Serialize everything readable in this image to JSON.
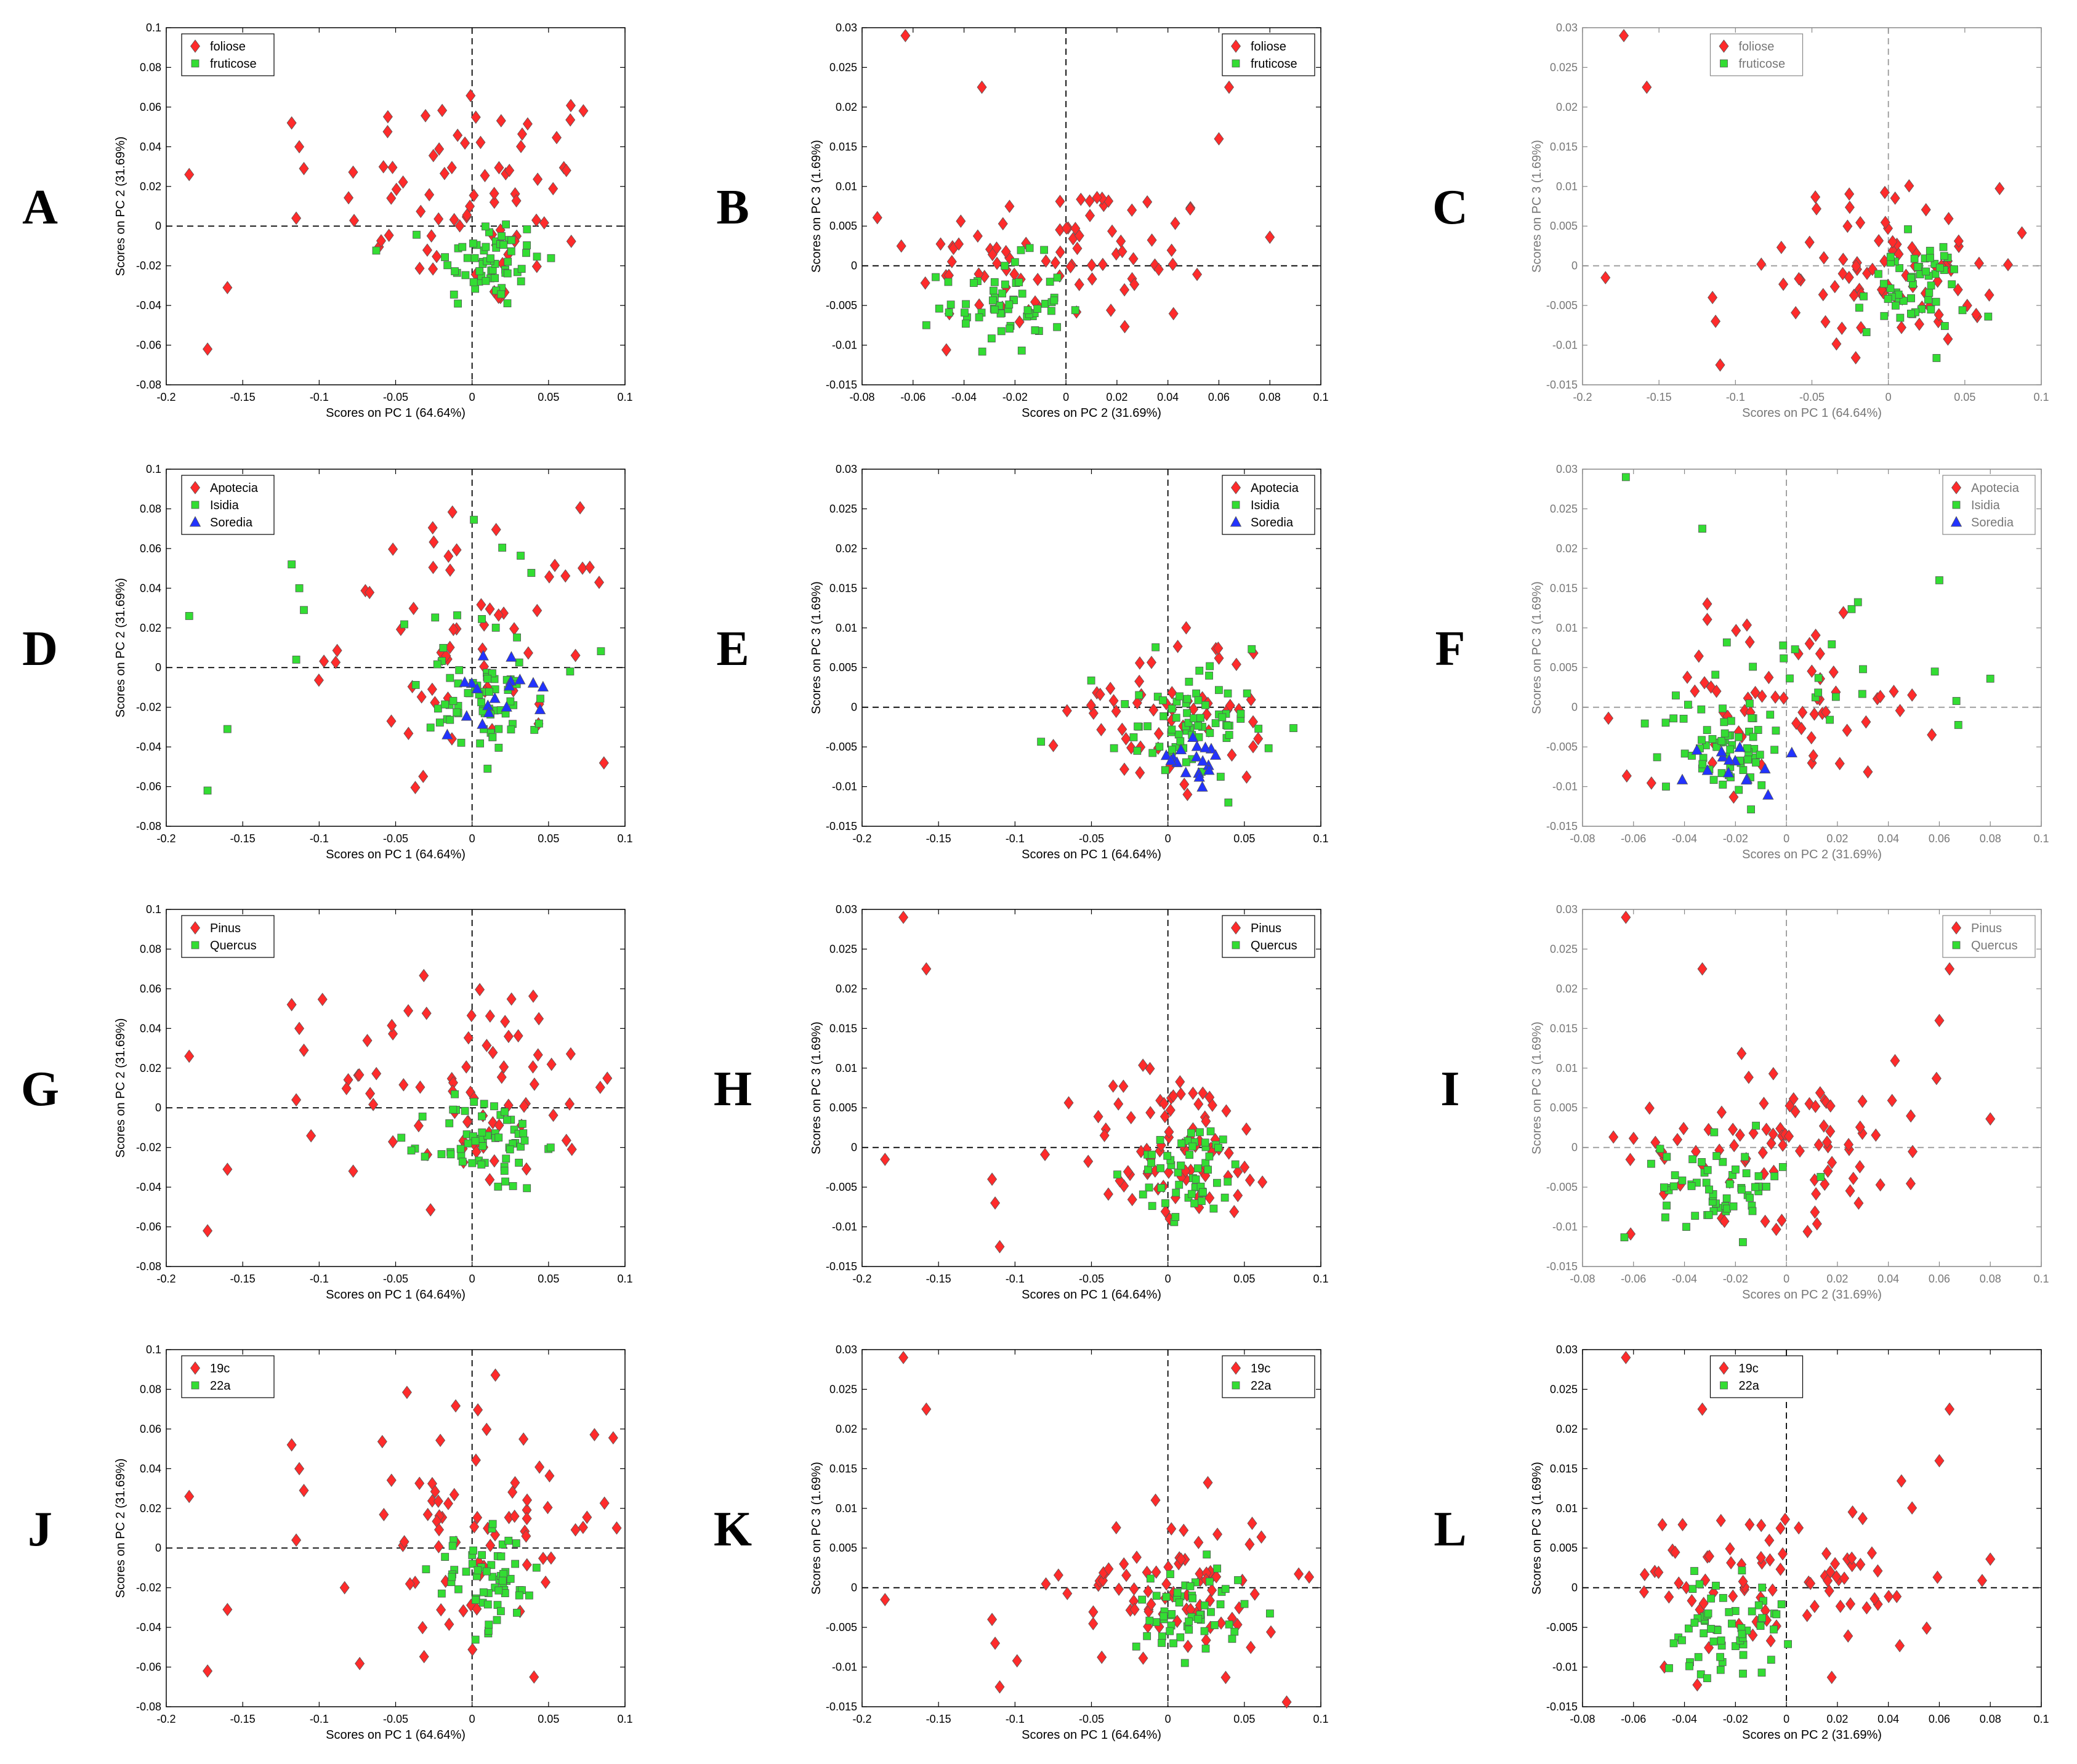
{
  "figure": {
    "colors": {
      "red": "#ff2b2b",
      "green": "#33dd33",
      "blue": "#2233ff",
      "edge": "#555555"
    },
    "series_markers": [
      "diamond-icon",
      "square-icon",
      "triangle-icon"
    ]
  },
  "chart_data": [
    {
      "letter": "A",
      "type": "scatter",
      "xlabel": "Scores on PC 1 (64.64%)",
      "ylabel": "Scores on PC 2 (31.69%)",
      "xlim": [
        -0.2,
        0.1
      ],
      "ylim": [
        -0.08,
        0.1
      ],
      "xticks": [
        "-0.2",
        "-0.15",
        "-0.1",
        "-0.05",
        "0",
        "0.05",
        "0.1"
      ],
      "yticks": [
        "-0.08",
        "-0.06",
        "-0.04",
        "-0.02",
        "0",
        "0.02",
        "0.04",
        "0.06",
        "0.08",
        "0.1"
      ],
      "legend_position": "top-left",
      "style": "black",
      "series": [
        {
          "name": "foliose",
          "color": "red"
        },
        {
          "name": "fruticose",
          "color": "green"
        }
      ]
    },
    {
      "letter": "B",
      "type": "scatter",
      "xlabel": "Scores on PC 2 (31.69%)",
      "ylabel": "Scores on PC 3 (1.69%)",
      "xlim": [
        -0.08,
        0.1
      ],
      "ylim": [
        -0.015,
        0.03
      ],
      "xticks": [
        "-0.08",
        "-0.06",
        "-0.04",
        "-0.02",
        "0",
        "0.02",
        "0.04",
        "0.06",
        "0.08",
        "0.1"
      ],
      "yticks": [
        "-0.015",
        "-0.01",
        "-0.005",
        "0",
        "0.005",
        "0.01",
        "0.015",
        "0.02",
        "0.025",
        "0.03"
      ],
      "legend_position": "top-right",
      "style": "black",
      "series": [
        {
          "name": "foliose",
          "color": "red"
        },
        {
          "name": "fruticose",
          "color": "green"
        }
      ]
    },
    {
      "letter": "C",
      "type": "scatter",
      "xlabel": "Scores on PC 1 (64.64%)",
      "ylabel": "Scores on PC 3 (1.69%)",
      "xlim": [
        -0.2,
        0.1
      ],
      "ylim": [
        -0.015,
        0.03
      ],
      "xticks": [
        "-0.2",
        "-0.15",
        "-0.1",
        "-0.05",
        "0",
        "0.05",
        "0.1"
      ],
      "yticks": [
        "-0.015",
        "-0.01",
        "-0.005",
        "0",
        "0.005",
        "0.01",
        "0.015",
        "0.02",
        "0.025",
        "0.03"
      ],
      "legend_position": "top-center",
      "style": "gray",
      "series": [
        {
          "name": "foliose",
          "color": "red"
        },
        {
          "name": "fruticose",
          "color": "green"
        }
      ]
    },
    {
      "letter": "D",
      "type": "scatter",
      "xlabel": "Scores on PC 1 (64.64%)",
      "ylabel": "Scores on PC 2 (31.69%)",
      "xlim": [
        -0.2,
        0.1
      ],
      "ylim": [
        -0.08,
        0.1
      ],
      "xticks": [
        "-0.2",
        "-0.15",
        "-0.1",
        "-0.05",
        "0",
        "0.05",
        "0.1"
      ],
      "yticks": [
        "-0.08",
        "-0.06",
        "-0.04",
        "-0.02",
        "0",
        "0.02",
        "0.04",
        "0.06",
        "0.08",
        "0.1"
      ],
      "legend_position": "top-left",
      "style": "black",
      "series": [
        {
          "name": "Apotecia",
          "color": "red"
        },
        {
          "name": "Isidia",
          "color": "green"
        },
        {
          "name": "Soredia",
          "color": "blue"
        }
      ]
    },
    {
      "letter": "E",
      "type": "scatter",
      "xlabel": "Scores on PC 1 (64.64%)",
      "ylabel": "Scores on PC 3 (1.69%)",
      "xlim": [
        -0.2,
        0.1
      ],
      "ylim": [
        -0.015,
        0.03
      ],
      "xticks": [
        "-0.2",
        "-0.15",
        "-0.1",
        "-0.05",
        "0",
        "0.05",
        "0.1"
      ],
      "yticks": [
        "-0.015",
        "-0.01",
        "-0.005",
        "0",
        "0.005",
        "0.01",
        "0.015",
        "0.02",
        "0.025",
        "0.03"
      ],
      "legend_position": "top-right",
      "style": "black",
      "series": [
        {
          "name": "Apotecia",
          "color": "red"
        },
        {
          "name": "Isidia",
          "color": "green"
        },
        {
          "name": "Soredia",
          "color": "blue"
        }
      ]
    },
    {
      "letter": "F",
      "type": "scatter",
      "xlabel": "Scores on PC 2 (31.69%)",
      "ylabel": "Scores on PC 3 (1.69%)",
      "xlim": [
        -0.08,
        0.1
      ],
      "ylim": [
        -0.015,
        0.03
      ],
      "xticks": [
        "-0.08",
        "-0.06",
        "-0.04",
        "-0.02",
        "0",
        "0.02",
        "0.04",
        "0.06",
        "0.08",
        "0.1"
      ],
      "yticks": [
        "-0.015",
        "-0.01",
        "-0.005",
        "0",
        "0.005",
        "0.01",
        "0.015",
        "0.02",
        "0.025",
        "0.03"
      ],
      "legend_position": "top-right",
      "style": "gray",
      "series": [
        {
          "name": "Apotecia",
          "color": "red"
        },
        {
          "name": "Isidia",
          "color": "green"
        },
        {
          "name": "Soredia",
          "color": "blue"
        }
      ]
    },
    {
      "letter": "G",
      "type": "scatter",
      "xlabel": "Scores on PC 1 (64.64%)",
      "ylabel": "Scores on PC 2 (31.69%)",
      "xlim": [
        -0.2,
        0.1
      ],
      "ylim": [
        -0.08,
        0.1
      ],
      "xticks": [
        "-0.2",
        "-0.15",
        "-0.1",
        "-0.05",
        "0",
        "0.05",
        "0.1"
      ],
      "yticks": [
        "-0.08",
        "-0.06",
        "-0.04",
        "-0.02",
        "0",
        "0.02",
        "0.04",
        "0.06",
        "0.08",
        "0.1"
      ],
      "legend_position": "top-left",
      "style": "black",
      "series": [
        {
          "name": "Pinus",
          "color": "red"
        },
        {
          "name": "Quercus",
          "color": "green"
        }
      ]
    },
    {
      "letter": "H",
      "type": "scatter",
      "xlabel": "Scores on PC 1 (64.64%)",
      "ylabel": "Scores on PC 3 (1.69%)",
      "xlim": [
        -0.2,
        0.1
      ],
      "ylim": [
        -0.015,
        0.03
      ],
      "xticks": [
        "-0.2",
        "-0.15",
        "-0.1",
        "-0.05",
        "0",
        "0.05",
        "0.1"
      ],
      "yticks": [
        "-0.015",
        "-0.01",
        "-0.005",
        "0",
        "0.005",
        "0.01",
        "0.015",
        "0.02",
        "0.025",
        "0.03"
      ],
      "legend_position": "top-right",
      "style": "black",
      "series": [
        {
          "name": "Pinus",
          "color": "red"
        },
        {
          "name": "Quercus",
          "color": "green"
        }
      ]
    },
    {
      "letter": "I",
      "type": "scatter",
      "xlabel": "Scores on PC 2 (31.69%)",
      "ylabel": "Scores on PC 3 (1.69%)",
      "xlim": [
        -0.08,
        0.1
      ],
      "ylim": [
        -0.015,
        0.03
      ],
      "xticks": [
        "-0.08",
        "-0.06",
        "-0.04",
        "-0.02",
        "0",
        "0.02",
        "0.04",
        "0.06",
        "0.08",
        "0.1"
      ],
      "yticks": [
        "-0.015",
        "-0.01",
        "-0.005",
        "0",
        "0.005",
        "0.01",
        "0.015",
        "0.02",
        "0.025",
        "0.03"
      ],
      "legend_position": "top-right",
      "style": "gray",
      "series": [
        {
          "name": "Pinus",
          "color": "red"
        },
        {
          "name": "Quercus",
          "color": "green"
        }
      ]
    },
    {
      "letter": "J",
      "type": "scatter",
      "xlabel": "Scores on PC 1 (64.64%)",
      "ylabel": "Scores on PC 2 (31.69%)",
      "xlim": [
        -0.2,
        0.1
      ],
      "ylim": [
        -0.08,
        0.1
      ],
      "xticks": [
        "-0.2",
        "-0.15",
        "-0.1",
        "-0.05",
        "0",
        "0.05",
        "0.1"
      ],
      "yticks": [
        "-0.08",
        "-0.06",
        "-0.04",
        "-0.02",
        "0",
        "0.02",
        "0.04",
        "0.06",
        "0.08",
        "0.1"
      ],
      "legend_position": "top-left",
      "style": "black",
      "series": [
        {
          "name": "19c",
          "color": "red"
        },
        {
          "name": "22a",
          "color": "green"
        }
      ]
    },
    {
      "letter": "K",
      "type": "scatter",
      "xlabel": "Scores on PC 1 (64.64%)",
      "ylabel": "Scores on PC 3 (1.69%)",
      "xlim": [
        -0.2,
        0.1
      ],
      "ylim": [
        -0.015,
        0.03
      ],
      "xticks": [
        "-0.2",
        "-0.15",
        "-0.1",
        "-0.05",
        "0",
        "0.05",
        "0.1"
      ],
      "yticks": [
        "-0.015",
        "-0.01",
        "-0.005",
        "0",
        "0.005",
        "0.01",
        "0.015",
        "0.02",
        "0.025",
        "0.03"
      ],
      "legend_position": "top-right",
      "style": "black",
      "series": [
        {
          "name": "19c",
          "color": "red"
        },
        {
          "name": "22a",
          "color": "green"
        }
      ]
    },
    {
      "letter": "L",
      "type": "scatter",
      "xlabel": "Scores on PC 2 (31.69%)",
      "ylabel": "Scores on PC 3 (1.69%)",
      "xlim": [
        -0.08,
        0.1
      ],
      "ylim": [
        -0.015,
        0.03
      ],
      "xticks": [
        "-0.08",
        "-0.06",
        "-0.04",
        "-0.02",
        "0",
        "0.02",
        "0.04",
        "0.06",
        "0.08",
        "0.1"
      ],
      "yticks": [
        "-0.015",
        "-0.01",
        "-0.005",
        "0",
        "0.005",
        "0.01",
        "0.015",
        "0.02",
        "0.025",
        "0.03"
      ],
      "legend_position": "top-center",
      "style": "black",
      "series": [
        {
          "name": "19c",
          "color": "red"
        },
        {
          "name": "22a",
          "color": "green"
        }
      ]
    }
  ]
}
